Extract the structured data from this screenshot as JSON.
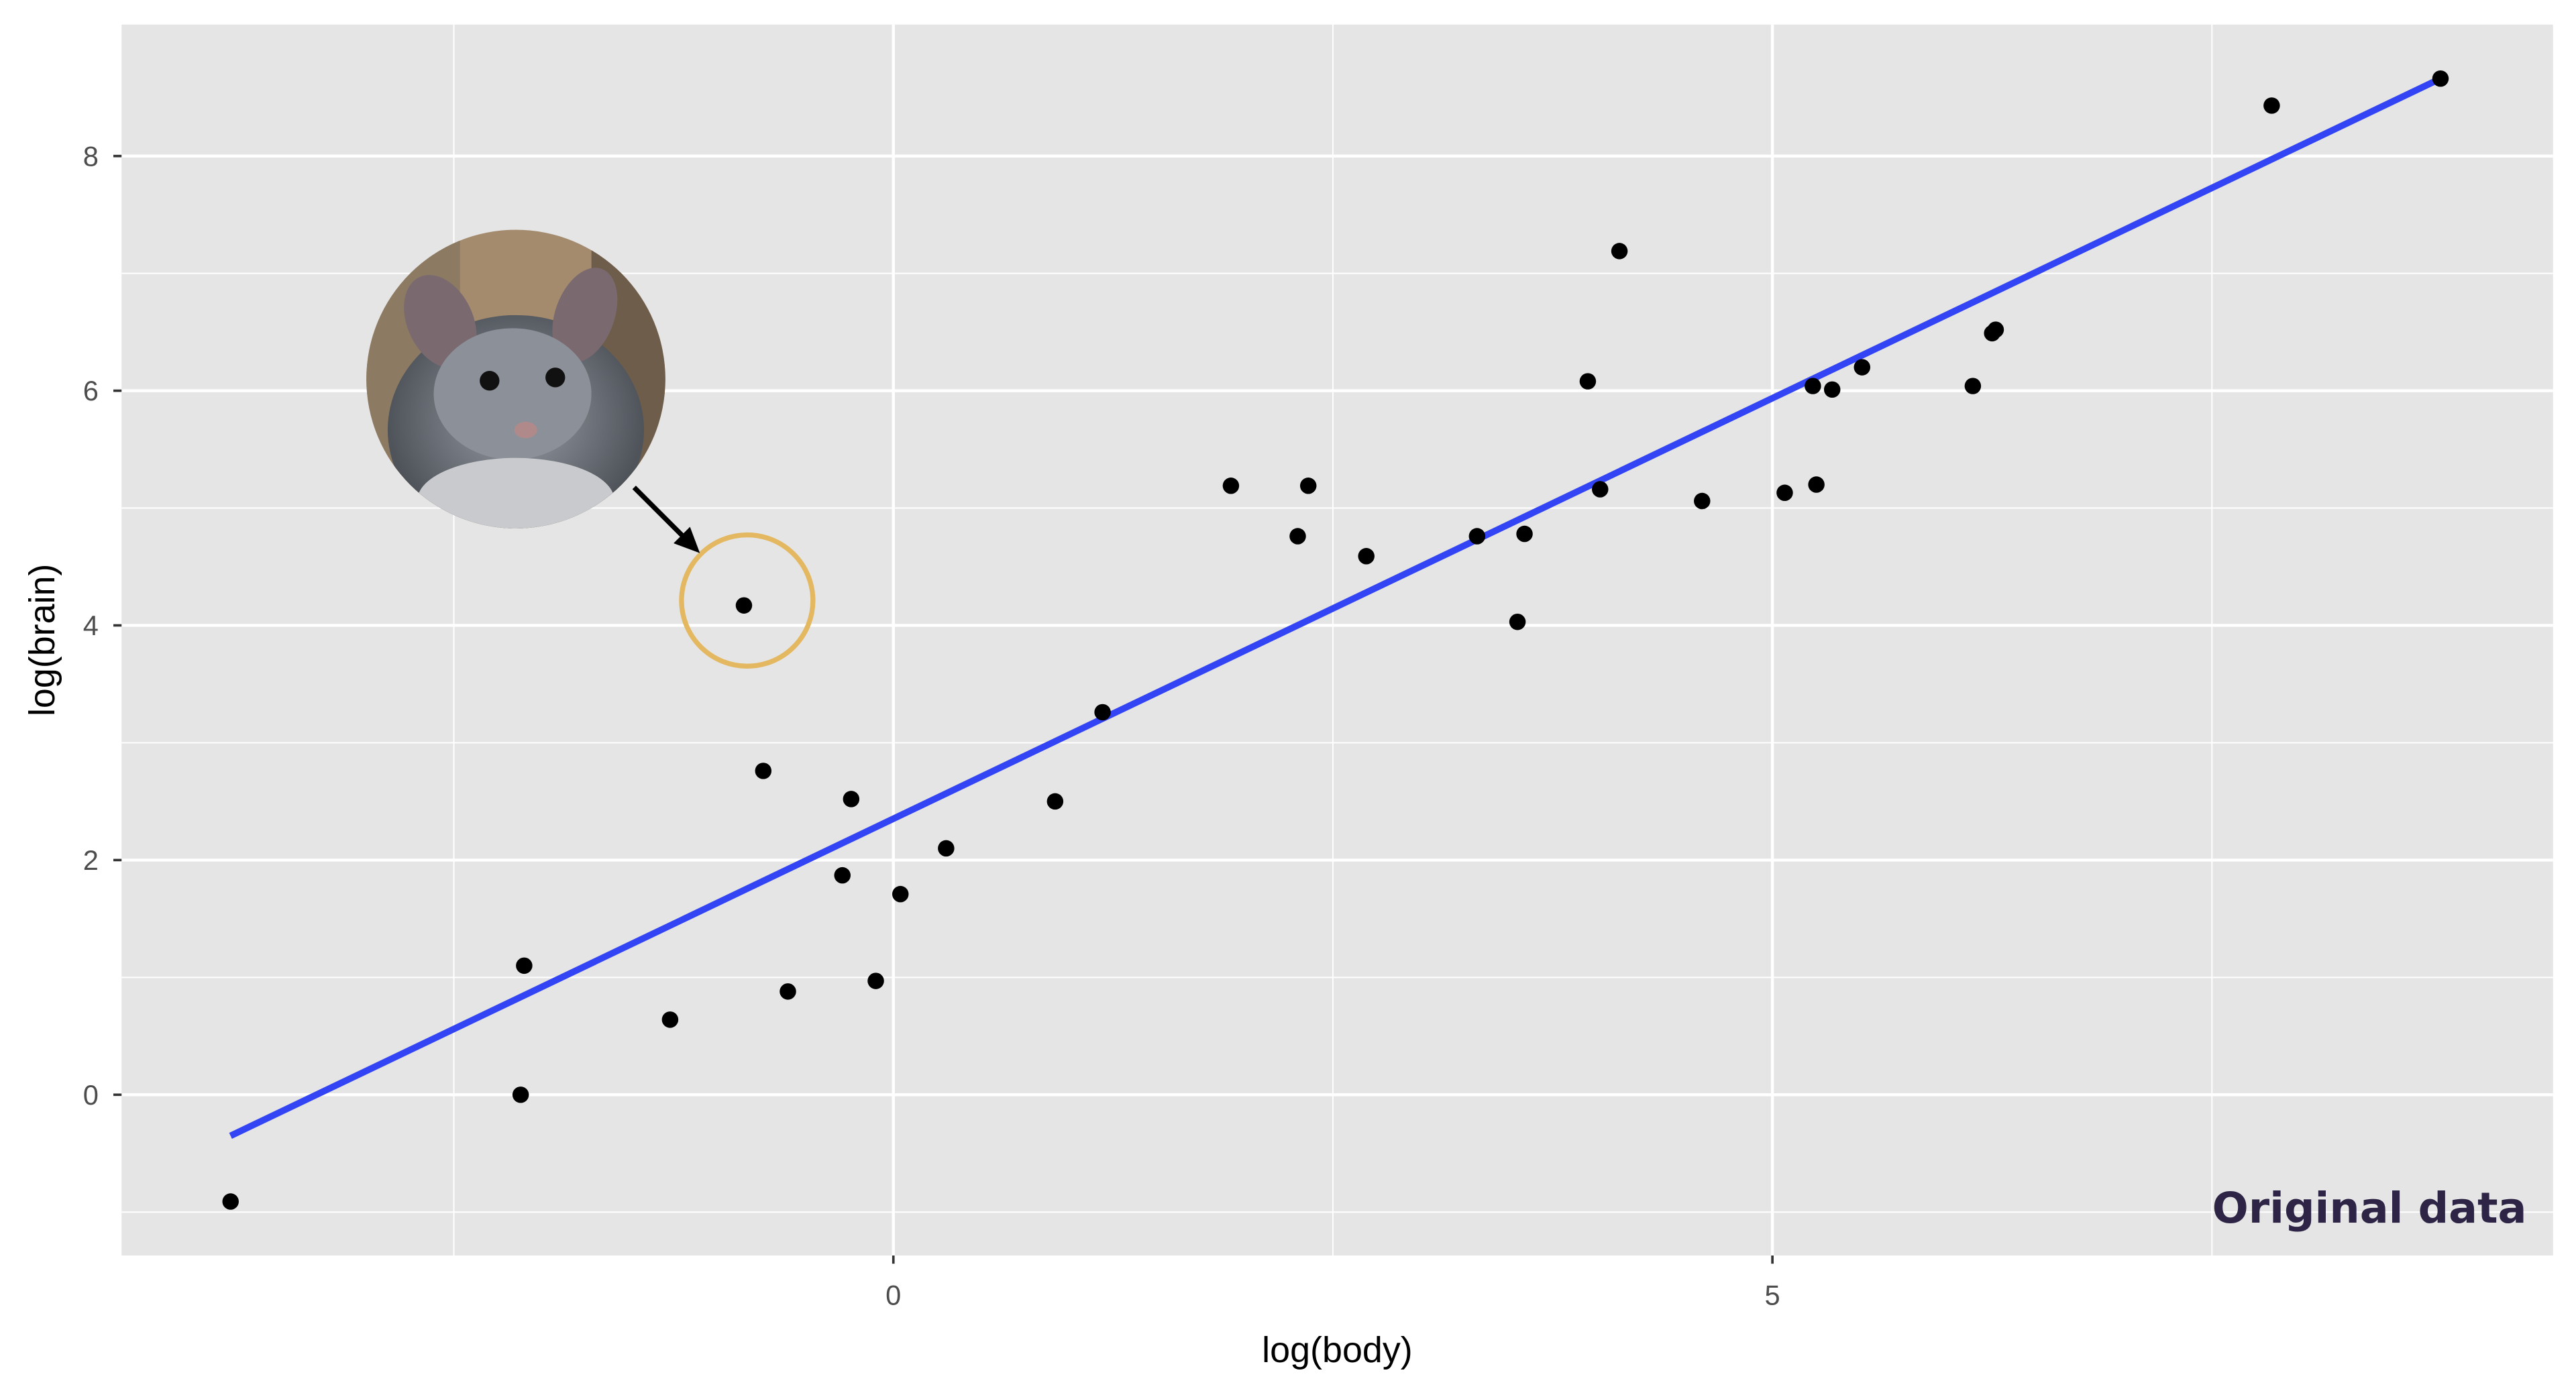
{
  "chart_data": {
    "type": "scatter",
    "xlabel": "log(body)",
    "ylabel": "log(brain)",
    "xlim": [
      -4.39,
      9.44
    ],
    "ylim": [
      -1.37,
      9.12
    ],
    "x_ticks": [
      0,
      5
    ],
    "x_minor_gridlines": [
      -2.5,
      2.5,
      7.5
    ],
    "y_ticks": [
      0,
      2,
      4,
      6,
      8
    ],
    "y_minor_gridlines": [
      -1,
      1,
      3,
      5,
      7
    ],
    "grid": true,
    "points": [
      [
        -3.77,
        -0.91
      ],
      [
        -2.12,
        0.0
      ],
      [
        -2.1,
        1.1
      ],
      [
        -1.27,
        0.64
      ],
      [
        -0.85,
        4.17
      ],
      [
        -0.74,
        2.76
      ],
      [
        -0.6,
        0.88
      ],
      [
        -0.29,
        1.87
      ],
      [
        -0.24,
        2.52
      ],
      [
        -0.1,
        0.97
      ],
      [
        0.04,
        1.71
      ],
      [
        0.3,
        2.1
      ],
      [
        0.92,
        2.5
      ],
      [
        1.19,
        3.26
      ],
      [
        1.92,
        5.19
      ],
      [
        2.3,
        4.76
      ],
      [
        2.36,
        5.19
      ],
      [
        2.69,
        4.59
      ],
      [
        3.32,
        4.76
      ],
      [
        3.55,
        4.03
      ],
      [
        3.59,
        4.78
      ],
      [
        3.95,
        6.08
      ],
      [
        4.02,
        5.16
      ],
      [
        4.13,
        7.19
      ],
      [
        4.6,
        5.06
      ],
      [
        5.07,
        5.13
      ],
      [
        5.23,
        6.04
      ],
      [
        5.25,
        5.2
      ],
      [
        5.34,
        6.01
      ],
      [
        5.51,
        6.2
      ],
      [
        6.14,
        6.04
      ],
      [
        6.25,
        6.49
      ],
      [
        6.27,
        6.52
      ],
      [
        7.84,
        8.43
      ],
      [
        8.8,
        8.66
      ]
    ],
    "fit_line": {
      "x": [
        -3.77,
        8.8
      ],
      "y": [
        -0.35,
        8.66
      ]
    },
    "highlighted_point": [
      -0.85,
      4.17
    ],
    "annotation": "Original data",
    "colors": {
      "panel": "#e5e5e5",
      "grid": "#ffffff",
      "points": "#000000",
      "fit_line": "#3344f5",
      "highlight_circle": "#e3b860",
      "annotation": "#2e2546"
    },
    "inset_image": "chinchilla-photo"
  }
}
